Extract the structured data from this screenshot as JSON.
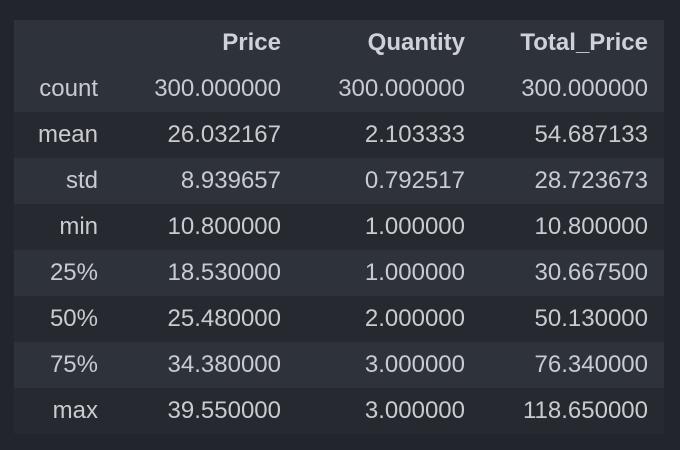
{
  "table": {
    "columns": [
      "",
      "Price",
      "Quantity",
      "Total_Price"
    ],
    "rows": [
      {
        "label": "count",
        "values": [
          "300.000000",
          "300.000000",
          "300.000000"
        ]
      },
      {
        "label": "mean",
        "values": [
          "26.032167",
          "2.103333",
          "54.687133"
        ]
      },
      {
        "label": "std",
        "values": [
          "8.939657",
          "0.792517",
          "28.723673"
        ]
      },
      {
        "label": "min",
        "values": [
          "10.800000",
          "1.000000",
          "10.800000"
        ]
      },
      {
        "label": "25%",
        "values": [
          "18.530000",
          "1.000000",
          "30.667500"
        ]
      },
      {
        "label": "50%",
        "values": [
          "25.480000",
          "2.000000",
          "50.130000"
        ]
      },
      {
        "label": "75%",
        "values": [
          "34.380000",
          "3.000000",
          "76.340000"
        ]
      },
      {
        "label": "max",
        "values": [
          "39.550000",
          "3.000000",
          "118.650000"
        ]
      }
    ]
  },
  "colors": {
    "background": "#22252d",
    "row_stripe": "#2e323b",
    "row_alt": "#262930",
    "text": "#c9cbd1"
  }
}
